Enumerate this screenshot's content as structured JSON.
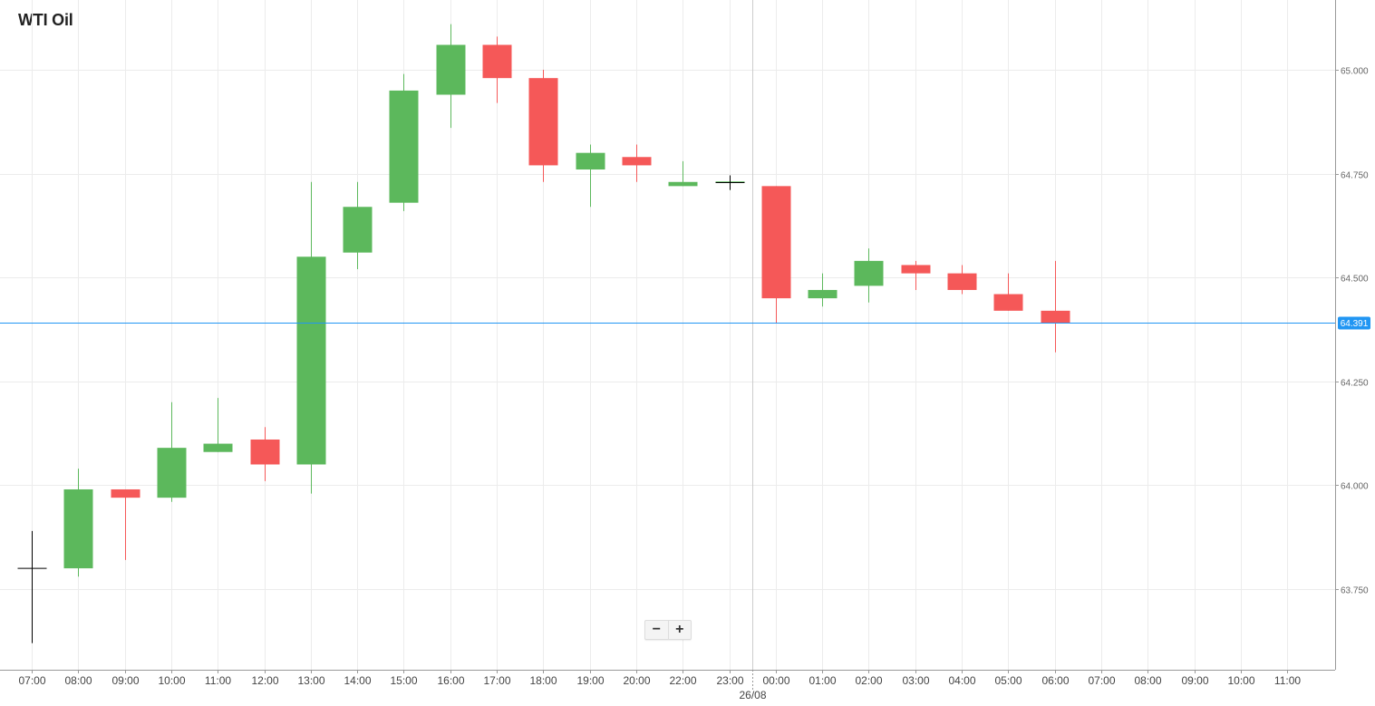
{
  "chart_data": {
    "type": "candlestick",
    "title": "WTI Oil",
    "y_ticks": [
      "65.000",
      "64.750",
      "64.500",
      "64.250",
      "64.000",
      "63.750"
    ],
    "ylim": [
      63.6,
      65.17
    ],
    "x_labels": [
      "07:00",
      "08:00",
      "09:00",
      "10:00",
      "11:00",
      "12:00",
      "13:00",
      "14:00",
      "15:00",
      "16:00",
      "17:00",
      "18:00",
      "19:00",
      "20:00",
      "22:00",
      "23:00",
      "00:00",
      "01:00",
      "02:00",
      "03:00",
      "04:00",
      "05:00",
      "06:00",
      "07:00",
      "08:00",
      "09:00",
      "10:00",
      "11:00"
    ],
    "date_separator": {
      "after_label": "23:00",
      "date": "26/08"
    },
    "current_price": {
      "value": 64.391,
      "label": "64.391"
    },
    "grid": true,
    "colors": {
      "up": "#5cb85c",
      "down": "#f55858",
      "price_line": "#2196f3",
      "grid": "#ececec",
      "doji": "#000000"
    },
    "candles": [
      {
        "time": "07:00",
        "open": 63.8,
        "high": 63.89,
        "low": 63.62,
        "close": 63.8
      },
      {
        "time": "08:00",
        "open": 63.8,
        "high": 64.04,
        "low": 63.78,
        "close": 63.99
      },
      {
        "time": "09:00",
        "open": 63.99,
        "high": 63.99,
        "low": 63.82,
        "close": 63.97
      },
      {
        "time": "10:00",
        "open": 63.97,
        "high": 64.2,
        "low": 63.96,
        "close": 64.09
      },
      {
        "time": "11:00",
        "open": 64.08,
        "high": 64.21,
        "low": 64.08,
        "close": 64.1
      },
      {
        "time": "12:00",
        "open": 64.11,
        "high": 64.14,
        "low": 64.01,
        "close": 64.05
      },
      {
        "time": "13:00",
        "open": 64.05,
        "high": 64.73,
        "low": 63.98,
        "close": 64.55
      },
      {
        "time": "14:00",
        "open": 64.56,
        "high": 64.73,
        "low": 64.52,
        "close": 64.67
      },
      {
        "time": "15:00",
        "open": 64.68,
        "high": 64.99,
        "low": 64.66,
        "close": 64.95
      },
      {
        "time": "16:00",
        "open": 64.94,
        "high": 65.11,
        "low": 64.86,
        "close": 65.06
      },
      {
        "time": "17:00",
        "open": 65.06,
        "high": 65.08,
        "low": 64.92,
        "close": 64.98
      },
      {
        "time": "18:00",
        "open": 64.98,
        "high": 65.0,
        "low": 64.73,
        "close": 64.77
      },
      {
        "time": "19:00",
        "open": 64.76,
        "high": 64.82,
        "low": 64.67,
        "close": 64.8
      },
      {
        "time": "20:00",
        "open": 64.79,
        "high": 64.82,
        "low": 64.73,
        "close": 64.77
      },
      {
        "time": "22:00",
        "open": 64.72,
        "high": 64.78,
        "low": 64.72,
        "close": 64.73
      },
      {
        "time": "23:00",
        "open": 64.73,
        "high": 64.74,
        "low": 64.71,
        "close": 64.73
      },
      {
        "time": "00:00",
        "open": 64.72,
        "high": 64.72,
        "low": 64.39,
        "close": 64.45
      },
      {
        "time": "01:00",
        "open": 64.45,
        "high": 64.51,
        "low": 64.43,
        "close": 64.47
      },
      {
        "time": "02:00",
        "open": 64.48,
        "high": 64.57,
        "low": 64.44,
        "close": 64.54
      },
      {
        "time": "03:00",
        "open": 64.53,
        "high": 64.54,
        "low": 64.47,
        "close": 64.51
      },
      {
        "time": "04:00",
        "open": 64.51,
        "high": 64.53,
        "low": 64.46,
        "close": 64.47
      },
      {
        "time": "05:00",
        "open": 64.46,
        "high": 64.51,
        "low": 64.42,
        "close": 64.42
      },
      {
        "time": "06:00",
        "open": 64.42,
        "high": 64.54,
        "low": 64.32,
        "close": 64.39
      }
    ]
  },
  "controls": {
    "zoom_out": "−",
    "zoom_in": "+"
  }
}
